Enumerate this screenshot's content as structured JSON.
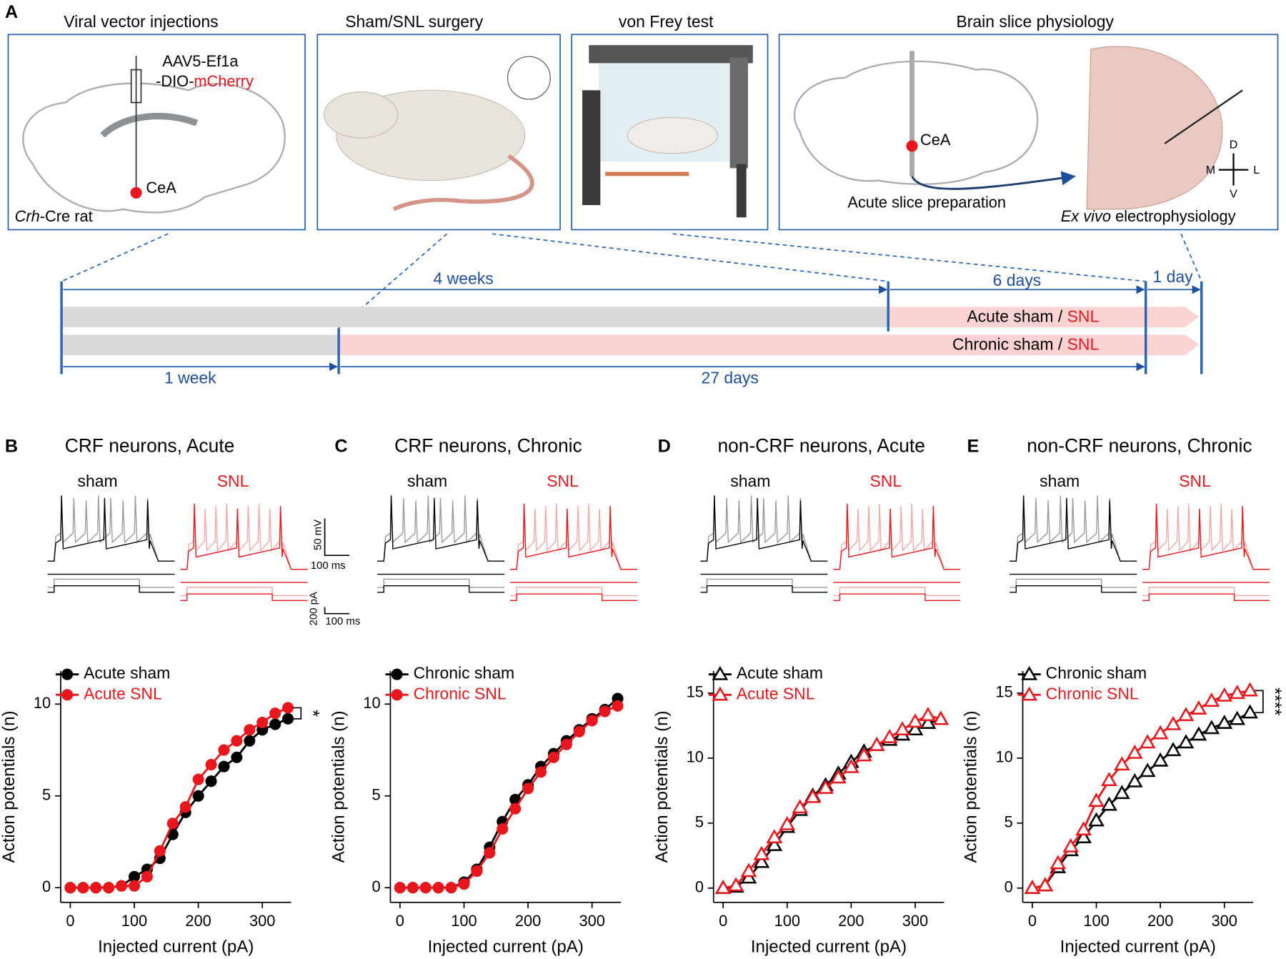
{
  "panel_a": {
    "letter": "A",
    "box_titles": [
      "Viral vector injections",
      "Sham/SNL surgery",
      "von Frey test",
      "Brain slice physiology"
    ],
    "vector_line1": "AAV5-Ef1a",
    "vector_line2a": "-DIO-",
    "vector_line2b": "mCherry",
    "cea": "CeA",
    "rat_italic": "Crh",
    "rat_rest": "-Cre rat",
    "slice_cea": "CeA",
    "slice_prep": "Acute slice preparation",
    "ephys_italic": "Ex vivo",
    "ephys_rest": " electrophysiology",
    "axes_d": "D",
    "axes_m": "M",
    "axes_l": "L",
    "axes_v": "V",
    "timeline": {
      "span_4w": "4 weeks",
      "span_6d": "6 days",
      "span_1d": "1 day",
      "acute": "Acute sham / ",
      "acute_snl": "SNL",
      "chronic": "Chronic sham / ",
      "chronic_snl": "SNL",
      "span_1w": "1 week",
      "span_27d": "27 days"
    }
  },
  "scale_bar": [
    "50 mV",
    "100 ms",
    "200 pA",
    "100 ms"
  ],
  "chart_data": [
    {
      "type": "line",
      "panel": "B",
      "title": "CRF neurons, Acute",
      "trace_labels": [
        "sham",
        "SNL"
      ],
      "x_label": "Injected current (pA)",
      "y_label": "Action potentials (n)",
      "marker": "circle",
      "significance": "*",
      "x": [
        0,
        20,
        40,
        60,
        80,
        100,
        120,
        140,
        160,
        180,
        200,
        220,
        240,
        260,
        280,
        300,
        320,
        340
      ],
      "xlim": [
        -15,
        345
      ],
      "xticks": [
        0,
        100,
        200,
        300
      ],
      "ylim": [
        -0.8,
        11.8
      ],
      "yticks": [
        0,
        5,
        10
      ],
      "series": [
        {
          "name": "Acute sham",
          "color": "#000000",
          "values": [
            0,
            0,
            0,
            0,
            0.1,
            0.6,
            1.0,
            1.6,
            2.9,
            4.1,
            5.0,
            5.8,
            6.6,
            7.1,
            8.0,
            8.6,
            8.9,
            9.2
          ]
        },
        {
          "name": "Acute SNL",
          "color": "#e8171d",
          "values": [
            0,
            0,
            0,
            0,
            0.1,
            0.1,
            0.6,
            2.0,
            3.5,
            4.4,
            5.9,
            6.7,
            7.5,
            8.0,
            8.6,
            9.0,
            9.5,
            9.8
          ]
        }
      ]
    },
    {
      "type": "line",
      "panel": "C",
      "title": "CRF neurons, Chronic",
      "trace_labels": [
        "sham",
        "SNL"
      ],
      "x_label": "Injected current (pA)",
      "y_label": "Action potentials (n)",
      "marker": "circle",
      "x": [
        0,
        20,
        40,
        60,
        80,
        100,
        120,
        140,
        160,
        180,
        200,
        220,
        240,
        260,
        280,
        300,
        320,
        340
      ],
      "xlim": [
        -15,
        345
      ],
      "xticks": [
        0,
        100,
        200,
        300
      ],
      "ylim": [
        -0.8,
        11.8
      ],
      "yticks": [
        0,
        5,
        10
      ],
      "series": [
        {
          "name": "Chronic sham",
          "color": "#000000",
          "values": [
            0,
            0,
            0,
            0,
            0,
            0.3,
            1.0,
            2.2,
            3.6,
            4.8,
            5.6,
            6.6,
            7.3,
            8.0,
            8.6,
            9.2,
            9.7,
            10.3
          ]
        },
        {
          "name": "Chronic SNL",
          "color": "#e8171d",
          "values": [
            0,
            0,
            0,
            0,
            0,
            0.2,
            0.9,
            1.9,
            3.2,
            4.3,
            5.4,
            6.3,
            7.1,
            7.8,
            8.5,
            9.1,
            9.6,
            9.9
          ]
        }
      ]
    },
    {
      "type": "line",
      "panel": "D",
      "title": "non-CRF neurons, Acute",
      "trace_labels": [
        "sham",
        "SNL"
      ],
      "x_label": "Injected current (pA)",
      "y_label": "Action potentials (n)",
      "marker": "triangle",
      "x": [
        0,
        20,
        40,
        60,
        80,
        100,
        120,
        140,
        160,
        180,
        200,
        220,
        240,
        260,
        280,
        300,
        320,
        340
      ],
      "xlim": [
        -15,
        345
      ],
      "xticks": [
        0,
        100,
        200,
        300
      ],
      "ylim": [
        -1.1,
        16.7
      ],
      "yticks": [
        0,
        5,
        10,
        15
      ],
      "series": [
        {
          "name": "Acute sham",
          "color": "#000000",
          "values": [
            0,
            0.1,
            0.8,
            2.0,
            3.3,
            4.7,
            6.0,
            7.1,
            7.9,
            8.8,
            9.7,
            10.5,
            11.0,
            11.4,
            11.8,
            12.2,
            12.7,
            13.0
          ]
        },
        {
          "name": "Acute SNL",
          "color": "#e8171d",
          "values": [
            0,
            0.2,
            1.3,
            2.6,
            3.9,
            4.9,
            6.2,
            7.0,
            7.7,
            8.5,
            9.3,
            10.2,
            11.0,
            11.6,
            12.2,
            12.8,
            13.3,
            13.0
          ]
        }
      ]
    },
    {
      "type": "line",
      "panel": "E",
      "title": "non-CRF neurons, Chronic",
      "trace_labels": [
        "sham",
        "SNL"
      ],
      "x_label": "Injected current (pA)",
      "y_label": "Action potentials (n)",
      "marker": "triangle",
      "significance": "****",
      "x": [
        0,
        20,
        40,
        60,
        80,
        100,
        120,
        140,
        160,
        180,
        200,
        220,
        240,
        260,
        280,
        300,
        320,
        340
      ],
      "xlim": [
        -15,
        345
      ],
      "xticks": [
        0,
        100,
        200,
        300
      ],
      "ylim": [
        -1.1,
        16.7
      ],
      "yticks": [
        0,
        5,
        10,
        15
      ],
      "series": [
        {
          "name": "Chronic sham",
          "color": "#000000",
          "values": [
            0,
            0.2,
            1.6,
            2.9,
            3.9,
            5.2,
            6.4,
            7.3,
            8.2,
            9.0,
            9.8,
            10.6,
            11.2,
            11.8,
            12.3,
            12.7,
            13.0,
            13.5
          ]
        },
        {
          "name": "Chronic SNL",
          "color": "#e8171d",
          "values": [
            0,
            0.2,
            1.9,
            3.2,
            4.5,
            6.7,
            8.3,
            9.5,
            10.4,
            11.2,
            11.9,
            12.6,
            13.3,
            13.8,
            14.4,
            14.8,
            15.0,
            15.2
          ]
        }
      ]
    }
  ]
}
